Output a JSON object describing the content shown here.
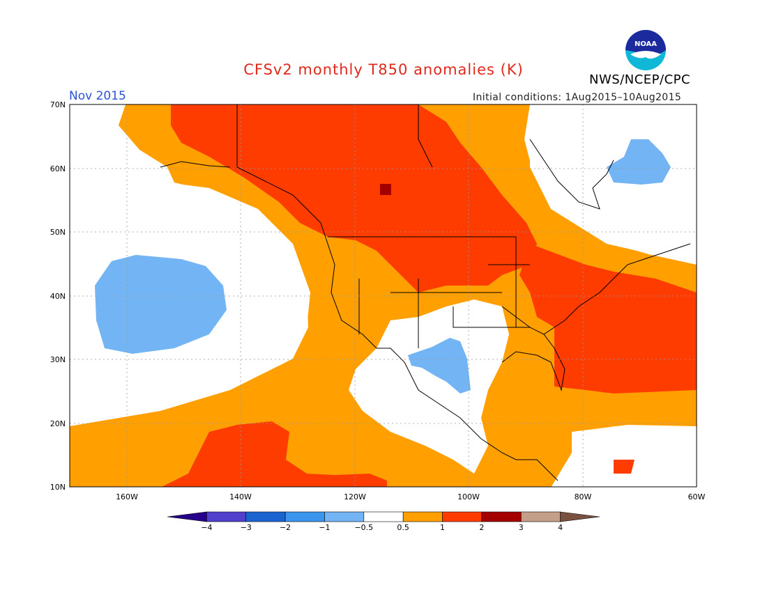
{
  "title": "CFSv2 monthly T850 anomalies (K)",
  "organization": "NWS/NCEP/CPC",
  "logo_text": "NOAA",
  "valid_month": "Nov 2015",
  "initial_conditions": "Initial conditions: 1Aug2015–10Aug2015",
  "map": {
    "lat_labels": [
      "70N",
      "60N",
      "50N",
      "40N",
      "30N",
      "20N",
      "10N"
    ],
    "lon_labels": [
      "160W",
      "140W",
      "120W",
      "100W",
      "80W",
      "60W"
    ],
    "regions": [
      {
        "name": "north-pacific-cool-anomaly",
        "category": "-1 to -0.5"
      },
      {
        "name": "canada-warm-anomaly",
        "category": "1 to 2"
      },
      {
        "name": "us-east-warm-anomaly",
        "category": "1 to 2"
      },
      {
        "name": "atlantic-warm-anomaly",
        "category": "1 to 2"
      },
      {
        "name": "hudson-bay-cool-anomaly",
        "category": "-1 to -0.5"
      },
      {
        "name": "texas-cool-anomaly",
        "category": "-1 to -0.5"
      }
    ]
  },
  "colorbar": {
    "ticks": [
      "−4",
      "−3",
      "−2",
      "−1",
      "−0.5",
      "0.5",
      "1",
      "2",
      "3",
      "4"
    ],
    "colors": [
      "#26008c",
      "#5040cc",
      "#1b64d0",
      "#3c95ec",
      "#73b4f5",
      "#ffffff",
      "#ffa000",
      "#ff3c00",
      "#a40000",
      "#c39f8a",
      "#7a5040"
    ]
  }
}
